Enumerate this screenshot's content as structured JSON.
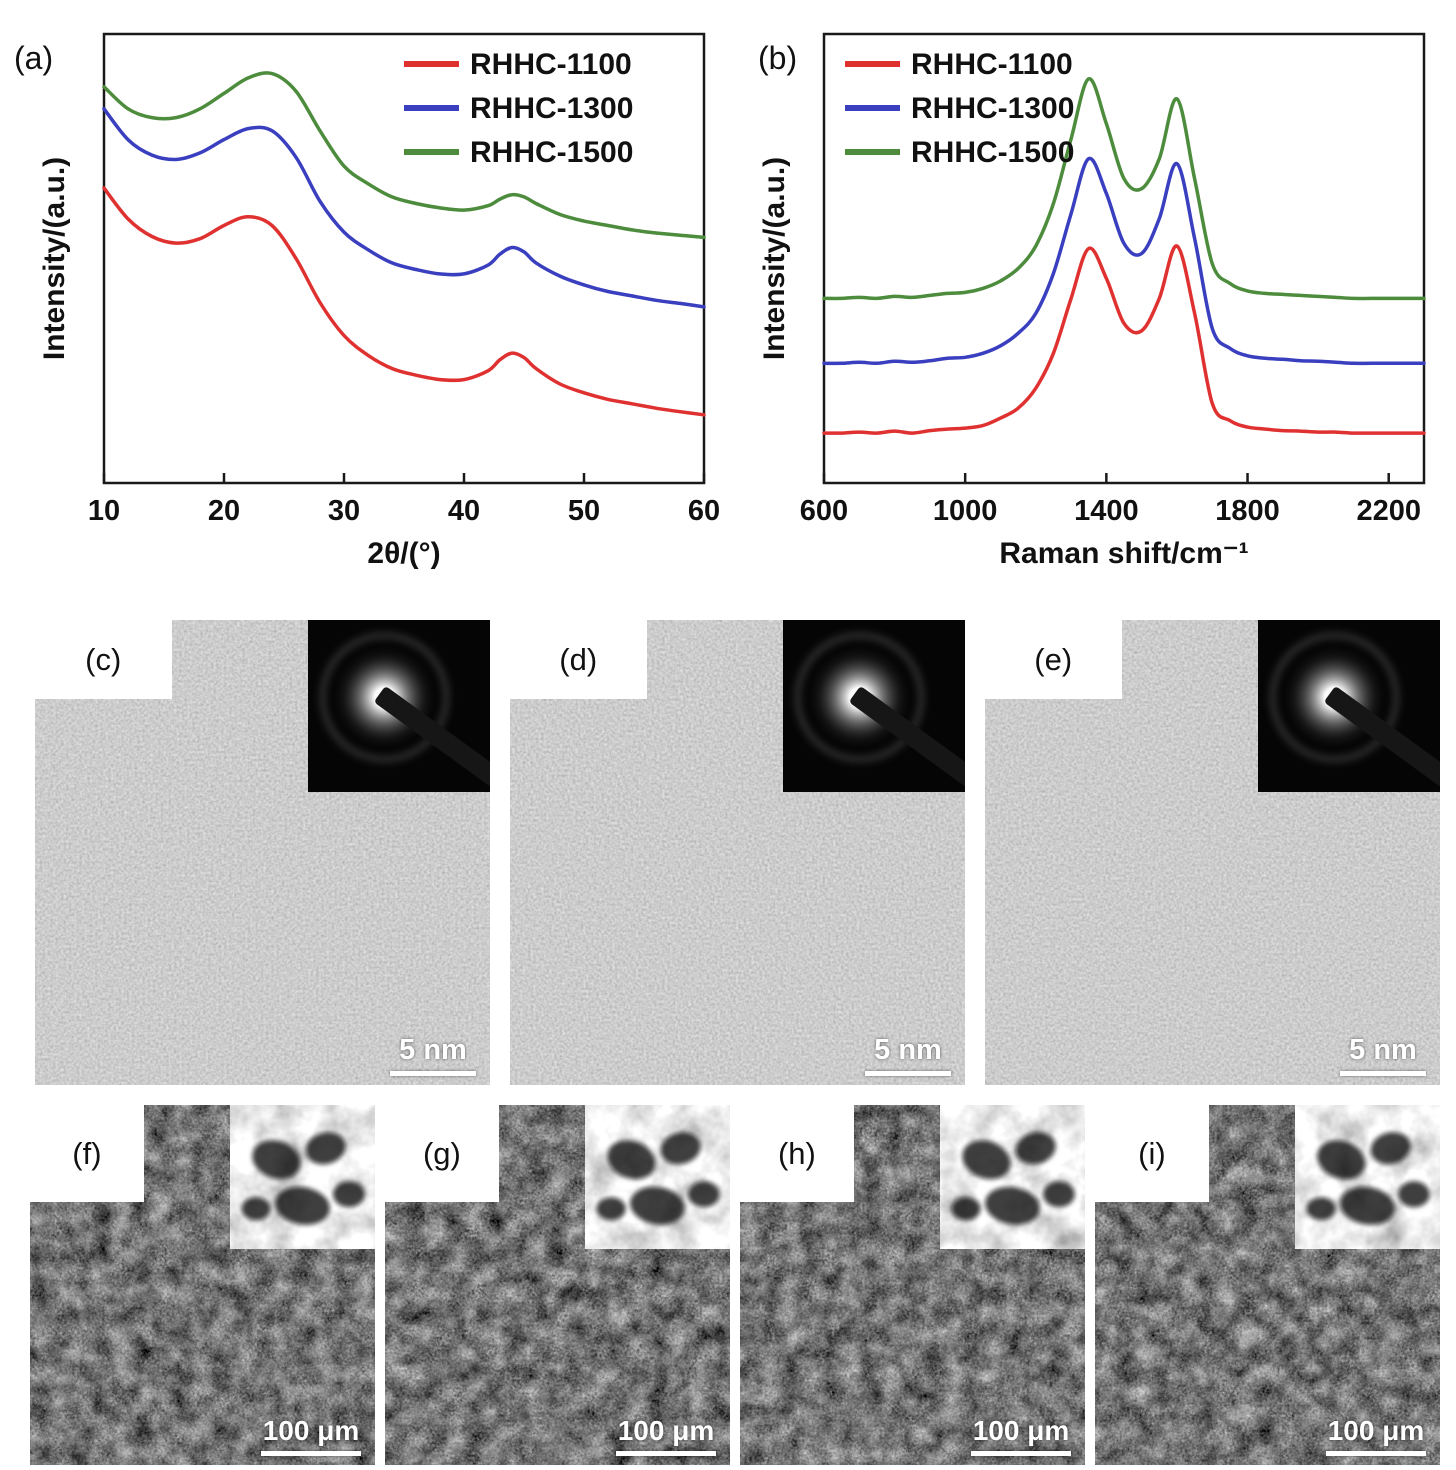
{
  "figure": {
    "labels": {
      "a": "(a)",
      "b": "(b)",
      "c": "(c)",
      "d": "(d)",
      "e": "(e)",
      "f": "(f)",
      "g": "(g)",
      "h": "(h)",
      "i": "(i)"
    },
    "tem_scale_label": "5 nm",
    "sem_scale_label": "100 μm"
  },
  "colors": {
    "rhhc_1100": "#e03131",
    "rhhc_1300": "#3a3fbf",
    "rhhc_1500": "#4c8c3c"
  },
  "chart_data": [
    {
      "type": "line",
      "title": "",
      "xlabel": "2θ/(°)",
      "ylabel": "Intensity/(a.u.)",
      "xlim": [
        10,
        60
      ],
      "ylim": [
        0,
        10.2
      ],
      "xticks": [
        10,
        20,
        30,
        40,
        50,
        60
      ],
      "grid": false,
      "legend_position": "top-right",
      "x": [
        10,
        12,
        14,
        16,
        18,
        20,
        22,
        24,
        26,
        28,
        30,
        32,
        34,
        36,
        38,
        40,
        42,
        43,
        44,
        45,
        46,
        48,
        50,
        52,
        54,
        56,
        58,
        60
      ],
      "series": [
        {
          "name": "RHHC-1100",
          "color": "#e03131",
          "values": [
            6.7,
            6.0,
            5.6,
            5.45,
            5.55,
            5.85,
            6.05,
            5.85,
            5.1,
            4.1,
            3.35,
            2.9,
            2.6,
            2.45,
            2.35,
            2.35,
            2.55,
            2.8,
            2.95,
            2.85,
            2.6,
            2.25,
            2.05,
            1.9,
            1.8,
            1.7,
            1.62,
            1.55
          ]
        },
        {
          "name": "RHHC-1300",
          "color": "#3a3fbf",
          "values": [
            8.5,
            7.8,
            7.45,
            7.35,
            7.5,
            7.8,
            8.05,
            8.0,
            7.4,
            6.4,
            5.7,
            5.3,
            5.0,
            4.85,
            4.75,
            4.75,
            4.95,
            5.2,
            5.35,
            5.25,
            5.0,
            4.7,
            4.5,
            4.35,
            4.25,
            4.15,
            4.08,
            4.0
          ]
        },
        {
          "name": "RHHC-1500",
          "color": "#4c8c3c",
          "values": [
            9.0,
            8.5,
            8.3,
            8.3,
            8.5,
            8.85,
            9.2,
            9.3,
            8.9,
            8.0,
            7.2,
            6.8,
            6.5,
            6.35,
            6.25,
            6.2,
            6.3,
            6.45,
            6.55,
            6.5,
            6.35,
            6.1,
            5.95,
            5.85,
            5.75,
            5.68,
            5.63,
            5.58
          ]
        }
      ]
    },
    {
      "type": "line",
      "title": "",
      "xlabel": "Raman shift/cm⁻¹",
      "ylabel": "Intensity/(a.u.)",
      "xlim": [
        600,
        2300
      ],
      "ylim": [
        0,
        9
      ],
      "xticks": [
        600,
        1000,
        1400,
        1800,
        2200
      ],
      "grid": false,
      "legend_position": "top-left",
      "x": [
        600,
        650,
        700,
        750,
        800,
        850,
        900,
        950,
        1000,
        1050,
        1100,
        1150,
        1200,
        1250,
        1300,
        1350,
        1400,
        1450,
        1500,
        1550,
        1600,
        1650,
        1700,
        1750,
        1800,
        1850,
        1900,
        1950,
        2000,
        2050,
        2100,
        2150,
        2200,
        2250,
        2300
      ],
      "series": [
        {
          "name": "RHHC-1100",
          "color": "#e03131",
          "values": [
            1.0,
            1.0,
            1.02,
            1.0,
            1.04,
            1.0,
            1.05,
            1.08,
            1.1,
            1.15,
            1.3,
            1.5,
            1.9,
            2.6,
            3.7,
            4.7,
            4.1,
            3.2,
            3.05,
            3.7,
            4.75,
            3.4,
            1.6,
            1.25,
            1.12,
            1.08,
            1.05,
            1.04,
            1.02,
            1.02,
            1.0,
            1.0,
            1.0,
            1.0,
            1.0
          ]
        },
        {
          "name": "RHHC-1300",
          "color": "#3a3fbf",
          "values": [
            2.4,
            2.4,
            2.42,
            2.4,
            2.44,
            2.42,
            2.45,
            2.5,
            2.52,
            2.6,
            2.75,
            3.0,
            3.4,
            4.2,
            5.4,
            6.5,
            5.8,
            4.8,
            4.6,
            5.3,
            6.4,
            4.9,
            3.1,
            2.7,
            2.55,
            2.5,
            2.48,
            2.45,
            2.44,
            2.42,
            2.4,
            2.4,
            2.4,
            2.4,
            2.4
          ]
        },
        {
          "name": "RHHC-1500",
          "color": "#4c8c3c",
          "values": [
            3.7,
            3.7,
            3.72,
            3.7,
            3.74,
            3.72,
            3.76,
            3.8,
            3.82,
            3.9,
            4.05,
            4.3,
            4.75,
            5.6,
            6.9,
            8.1,
            7.2,
            6.1,
            5.9,
            6.5,
            7.7,
            6.1,
            4.4,
            4.0,
            3.85,
            3.8,
            3.78,
            3.76,
            3.74,
            3.72,
            3.7,
            3.7,
            3.7,
            3.7,
            3.7
          ]
        }
      ]
    }
  ]
}
